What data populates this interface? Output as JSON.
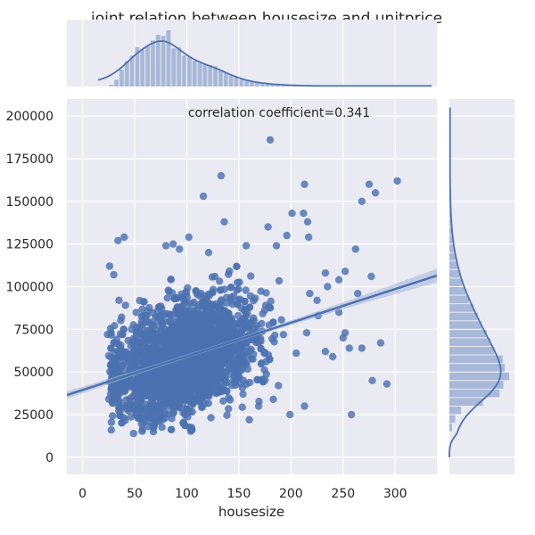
{
  "chart_data": {
    "type": "scatter",
    "title": "joint relation between housesize and unitprice",
    "xlabel": "housesize",
    "ylabel": "",
    "annotation": "correlation coefficient=0.341",
    "xlim": [
      -15,
      340
    ],
    "ylim": [
      -10000,
      210000
    ],
    "xticks": [
      0,
      50,
      100,
      150,
      200,
      250,
      300
    ],
    "yticks": [
      0,
      25000,
      50000,
      75000,
      100000,
      125000,
      150000,
      175000,
      200000
    ],
    "grid": true,
    "colors": {
      "points": "#4c72b0",
      "line": "#4c72b0",
      "band": "#a1b4d8",
      "histogram": "#a8b8d8",
      "panel": "#eaeaf2",
      "grid": "#ffffff"
    },
    "regression": {
      "points": [
        [
          -15,
          36500
        ],
        [
          340,
          106500
        ]
      ],
      "ci_halfwidth_at_edges": 4000
    },
    "scatter_highlights": [
      [
        180,
        186000
      ],
      [
        133,
        165000
      ],
      [
        116,
        153000
      ],
      [
        302,
        162000
      ],
      [
        275,
        160000
      ],
      [
        281,
        155000
      ],
      [
        213,
        160000
      ],
      [
        268,
        150000
      ],
      [
        201,
        143000
      ],
      [
        212,
        143000
      ],
      [
        216,
        138000
      ],
      [
        136,
        138000
      ],
      [
        178,
        135000
      ],
      [
        262,
        122000
      ],
      [
        217,
        129000
      ],
      [
        196,
        130000
      ],
      [
        80,
        124000
      ],
      [
        87,
        125000
      ],
      [
        93,
        122000
      ],
      [
        102,
        129000
      ],
      [
        121,
        120000
      ],
      [
        186,
        124000
      ],
      [
        157,
        124000
      ],
      [
        34,
        127000
      ],
      [
        40,
        129000
      ],
      [
        277,
        106000
      ],
      [
        233,
        108000
      ],
      [
        252,
        109000
      ],
      [
        235,
        100000
      ],
      [
        264,
        96000
      ],
      [
        218,
        96000
      ],
      [
        225,
        92000
      ],
      [
        246,
        104000
      ],
      [
        226,
        83000
      ],
      [
        252,
        73000
      ],
      [
        256,
        64000
      ],
      [
        286,
        67000
      ],
      [
        268,
        64000
      ],
      [
        278,
        45000
      ],
      [
        292,
        43000
      ],
      [
        258,
        25000
      ],
      [
        213,
        30000
      ],
      [
        199,
        25000
      ],
      [
        240,
        59000
      ],
      [
        233,
        62000
      ],
      [
        205,
        61000
      ],
      [
        30,
        107000
      ],
      [
        26,
        112000
      ],
      [
        35,
        92000
      ],
      [
        24,
        72000
      ],
      [
        49,
        14000
      ],
      [
        68,
        15000
      ],
      [
        105,
        16000
      ],
      [
        160,
        22000
      ],
      [
        169,
        30000
      ],
      [
        183,
        34000
      ],
      [
        188,
        42000
      ],
      [
        250,
        70000
      ],
      [
        246,
        85000
      ],
      [
        215,
        73000
      ]
    ],
    "density_model": {
      "count": 2600,
      "x_mean": 92,
      "x_sd": 32,
      "y_mean": 57000,
      "y_sd": 15500,
      "slope": 197
    },
    "x_marginal": {
      "bin_width": 5,
      "bins_start": 25,
      "counts": [
        3,
        12,
        30,
        45,
        55,
        70,
        66,
        72,
        82,
        92,
        90,
        100,
        68,
        70,
        55,
        52,
        46,
        42,
        40,
        38,
        36,
        30,
        25,
        20,
        16,
        12,
        10,
        8,
        7,
        6,
        5,
        4,
        3,
        3,
        2,
        2,
        2,
        1,
        1,
        1,
        1,
        1,
        1,
        1,
        1,
        1
      ]
    },
    "y_marginal": {
      "bin_width": 5000,
      "bins_start": 15000,
      "counts": [
        4,
        9,
        18,
        52,
        78,
        84,
        93,
        86,
        83,
        70,
        64,
        58,
        50,
        44,
        38,
        30,
        25,
        20,
        16,
        12,
        9,
        7,
        5,
        4,
        3,
        2,
        2,
        1,
        1,
        1,
        1,
        1,
        1,
        1,
        1,
        1,
        1,
        1
      ]
    }
  }
}
